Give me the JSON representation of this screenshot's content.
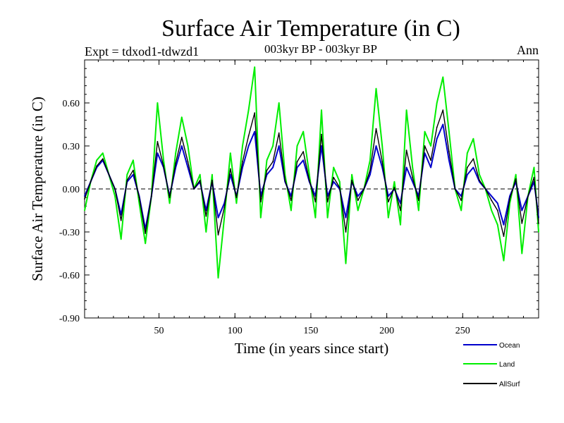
{
  "chart_data": {
    "type": "line",
    "title": "Surface Air Temperature (in C)",
    "subtitle": "003kyr BP - 003kyr BP",
    "experiment_label": "Expt = tdxod1-tdwzd1",
    "period_label": "Ann",
    "xlabel": "Time (in years since start)",
    "ylabel": "Surface Air Temperature (in C)",
    "xlim": [
      1,
      300
    ],
    "ylim": [
      -0.9,
      0.9
    ],
    "x_ticks": [
      50,
      100,
      150,
      200,
      250
    ],
    "x_tick_labels": [
      "50",
      "100",
      "150",
      "200",
      "250"
    ],
    "y_ticks": [
      -0.9,
      -0.6,
      -0.3,
      0.0,
      0.3,
      0.6
    ],
    "y_tick_labels": [
      "-0.90",
      "-0.60",
      "-0.30",
      "0.00",
      "0.30",
      "0.60"
    ],
    "zero_line": true,
    "legend_position": "bottom-right, below plot",
    "series": [
      {
        "name": "Ocean",
        "color": "#0000cc",
        "x": [
          1,
          5,
          9,
          13,
          17,
          21,
          25,
          29,
          33,
          37,
          41,
          45,
          49,
          53,
          57,
          61,
          65,
          69,
          73,
          77,
          81,
          85,
          89,
          93,
          97,
          101,
          105,
          109,
          113,
          117,
          121,
          125,
          129,
          133,
          137,
          141,
          145,
          149,
          153,
          157,
          161,
          165,
          169,
          173,
          177,
          181,
          185,
          189,
          193,
          197,
          201,
          205,
          209,
          213,
          217,
          221,
          225,
          229,
          233,
          237,
          241,
          245,
          249,
          253,
          257,
          261,
          265,
          269,
          273,
          277,
          281,
          285,
          289,
          293,
          297,
          300
        ],
        "values": [
          -0.05,
          0.05,
          0.15,
          0.2,
          0.1,
          0.0,
          -0.18,
          0.05,
          0.1,
          -0.05,
          -0.28,
          -0.05,
          0.25,
          0.15,
          -0.05,
          0.15,
          0.3,
          0.15,
          0.0,
          0.05,
          -0.15,
          0.05,
          -0.2,
          -0.1,
          0.1,
          -0.05,
          0.15,
          0.3,
          0.4,
          -0.05,
          0.1,
          0.15,
          0.3,
          0.05,
          -0.05,
          0.15,
          0.2,
          0.05,
          -0.05,
          0.3,
          -0.05,
          0.05,
          0.0,
          -0.2,
          0.05,
          -0.05,
          0.0,
          0.1,
          0.3,
          0.15,
          -0.05,
          0.0,
          -0.1,
          0.15,
          0.05,
          -0.05,
          0.25,
          0.15,
          0.35,
          0.45,
          0.2,
          0.0,
          -0.05,
          0.1,
          0.15,
          0.05,
          0.0,
          -0.05,
          -0.1,
          -0.25,
          -0.05,
          0.05,
          -0.15,
          -0.05,
          0.05,
          -0.2
        ]
      },
      {
        "name": "Land",
        "color": "#00ee00",
        "x": [
          1,
          5,
          9,
          13,
          17,
          21,
          25,
          29,
          33,
          37,
          41,
          45,
          49,
          53,
          57,
          61,
          65,
          69,
          73,
          77,
          81,
          85,
          89,
          93,
          97,
          101,
          105,
          109,
          113,
          117,
          121,
          125,
          129,
          133,
          137,
          141,
          145,
          149,
          153,
          157,
          161,
          165,
          169,
          173,
          177,
          181,
          185,
          189,
          193,
          197,
          201,
          205,
          209,
          213,
          217,
          221,
          225,
          229,
          233,
          237,
          241,
          245,
          249,
          253,
          257,
          261,
          265,
          269,
          273,
          277,
          281,
          285,
          289,
          293,
          297,
          300
        ],
        "values": [
          -0.15,
          0.05,
          0.2,
          0.25,
          0.1,
          -0.05,
          -0.35,
          0.1,
          0.2,
          -0.1,
          -0.38,
          -0.05,
          0.6,
          0.2,
          -0.1,
          0.25,
          0.5,
          0.3,
          0.0,
          0.1,
          -0.3,
          0.1,
          -0.62,
          -0.2,
          0.25,
          -0.1,
          0.3,
          0.55,
          0.85,
          -0.2,
          0.2,
          0.3,
          0.6,
          0.1,
          -0.15,
          0.3,
          0.4,
          0.1,
          -0.2,
          0.55,
          -0.2,
          0.15,
          0.05,
          -0.52,
          0.1,
          -0.15,
          0.0,
          0.2,
          0.7,
          0.3,
          -0.2,
          0.05,
          -0.25,
          0.55,
          0.15,
          -0.15,
          0.4,
          0.3,
          0.6,
          0.78,
          0.4,
          0.0,
          -0.15,
          0.25,
          0.35,
          0.1,
          0.0,
          -0.15,
          -0.25,
          -0.5,
          -0.1,
          0.1,
          -0.45,
          -0.05,
          0.15,
          -0.3
        ]
      },
      {
        "name": "AllSurf",
        "color": "#000000",
        "x": [
          1,
          5,
          9,
          13,
          17,
          21,
          25,
          29,
          33,
          37,
          41,
          45,
          49,
          53,
          57,
          61,
          65,
          69,
          73,
          77,
          81,
          85,
          89,
          93,
          97,
          101,
          105,
          109,
          113,
          117,
          121,
          125,
          129,
          133,
          137,
          141,
          145,
          149,
          153,
          157,
          161,
          165,
          169,
          173,
          177,
          181,
          185,
          189,
          193,
          197,
          201,
          205,
          209,
          213,
          217,
          221,
          225,
          229,
          233,
          237,
          241,
          245,
          249,
          253,
          257,
          261,
          265,
          269,
          273,
          277,
          281,
          285,
          289,
          293,
          297,
          300
        ],
        "values": [
          -0.07,
          0.05,
          0.16,
          0.21,
          0.1,
          0.0,
          -0.22,
          0.06,
          0.13,
          -0.06,
          -0.31,
          -0.05,
          0.33,
          0.16,
          -0.06,
          0.18,
          0.36,
          0.19,
          0.0,
          0.06,
          -0.19,
          0.06,
          -0.32,
          -0.13,
          0.14,
          -0.06,
          0.19,
          0.37,
          0.53,
          -0.09,
          0.13,
          0.19,
          0.39,
          0.06,
          -0.08,
          0.19,
          0.26,
          0.06,
          -0.09,
          0.38,
          -0.09,
          0.08,
          0.01,
          -0.3,
          0.06,
          -0.08,
          0.0,
          0.13,
          0.42,
          0.19,
          -0.09,
          0.01,
          -0.15,
          0.27,
          0.08,
          -0.08,
          0.3,
          0.2,
          0.43,
          0.55,
          0.26,
          0.0,
          -0.08,
          0.15,
          0.21,
          0.06,
          0.0,
          -0.08,
          -0.15,
          -0.33,
          -0.07,
          0.07,
          -0.24,
          -0.05,
          0.08,
          -0.24
        ]
      }
    ]
  }
}
